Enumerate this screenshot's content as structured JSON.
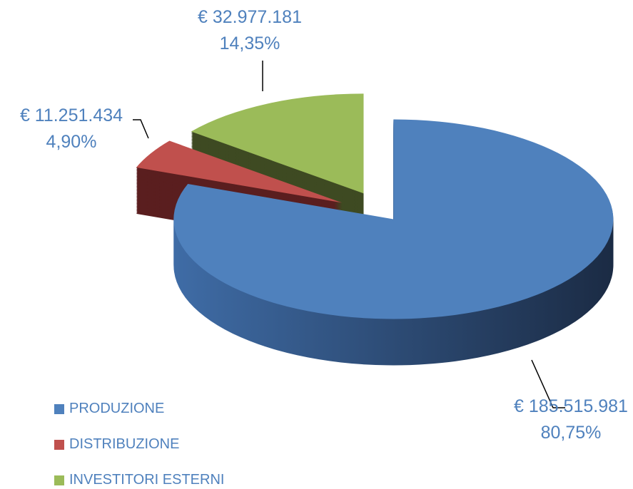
{
  "chart_data": {
    "type": "pie",
    "categories": [
      "PRODUZIONE",
      "DISTRIBUZIONE",
      "INVESTITORI ESTERNI"
    ],
    "values": [
      185515981,
      11251434,
      32977181
    ],
    "value_labels": [
      "€ 185.515.981",
      "€ 11.251.434",
      "€ 32.977.181"
    ],
    "percentages": [
      80.75,
      4.9,
      14.35
    ],
    "percentage_labels": [
      "80,75%",
      "4,90%",
      "14,35%"
    ],
    "colors": [
      "#4f81bd",
      "#c0504d",
      "#9bbb59"
    ],
    "legend": "bottom-left"
  }
}
